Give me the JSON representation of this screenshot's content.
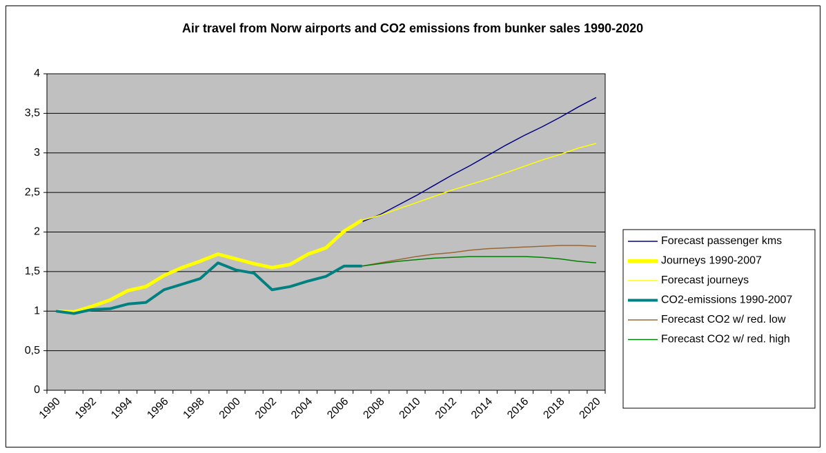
{
  "chart_data": {
    "type": "line",
    "title": "Air travel from Norw airports and CO2 emissions from bunker sales 1990-2020",
    "categories": [
      "1990",
      null,
      "1992",
      null,
      "1994",
      null,
      "1996",
      null,
      "1998",
      null,
      "2000",
      null,
      "2002",
      null,
      "2004",
      null,
      "2006",
      null,
      "2008",
      null,
      "2010",
      null,
      "2012",
      null,
      "2014",
      null,
      "2016",
      null,
      "2018",
      null,
      "2020"
    ],
    "series": [
      {
        "name": "Forecast passenger kms",
        "color": "#000080",
        "line_width": 1.5,
        "values": [
          null,
          null,
          null,
          null,
          null,
          null,
          null,
          null,
          null,
          null,
          null,
          null,
          null,
          null,
          null,
          null,
          null,
          2.13,
          2.22,
          2.34,
          2.46,
          2.59,
          2.72,
          2.84,
          2.97,
          3.1,
          3.22,
          3.33,
          3.45,
          3.58,
          3.7
        ]
      },
      {
        "name": "Journeys 1990-2007",
        "color": "#ffff00",
        "line_width": 5,
        "values": [
          1.0,
          0.99,
          1.06,
          1.14,
          1.26,
          1.31,
          1.45,
          1.55,
          1.63,
          1.72,
          1.66,
          1.6,
          1.55,
          1.59,
          1.72,
          1.8,
          2.01,
          2.15,
          null,
          null,
          null,
          null,
          null,
          null,
          null,
          null,
          null,
          null,
          null,
          null,
          null
        ]
      },
      {
        "name": "Forecast journeys",
        "color": "#ffff00",
        "line_width": 1.5,
        "values": [
          null,
          null,
          null,
          null,
          null,
          null,
          null,
          null,
          null,
          null,
          null,
          null,
          null,
          null,
          null,
          null,
          null,
          2.15,
          2.21,
          2.29,
          2.37,
          2.45,
          2.53,
          2.6,
          2.67,
          2.75,
          2.83,
          2.91,
          2.98,
          3.06,
          3.12
        ]
      },
      {
        "name": "CO2-emissions 1990-2007",
        "color": "#008080",
        "line_width": 4,
        "values": [
          1.0,
          0.97,
          1.02,
          1.03,
          1.09,
          1.11,
          1.27,
          1.34,
          1.41,
          1.61,
          1.52,
          1.48,
          1.27,
          1.31,
          1.38,
          1.44,
          1.57,
          1.57,
          null,
          null,
          null,
          null,
          null,
          null,
          null,
          null,
          null,
          null,
          null,
          null,
          null
        ]
      },
      {
        "name": "Forecast CO2 w/ red. low",
        "color": "#996633",
        "line_width": 1.5,
        "values": [
          null,
          null,
          null,
          null,
          null,
          null,
          null,
          null,
          null,
          null,
          null,
          null,
          null,
          null,
          null,
          null,
          null,
          1.57,
          1.61,
          1.65,
          1.69,
          1.72,
          1.74,
          1.77,
          1.79,
          1.8,
          1.81,
          1.82,
          1.83,
          1.83,
          1.82
        ]
      },
      {
        "name": "Forecast CO2 w/ red. high",
        "color": "#008000",
        "line_width": 1.5,
        "values": [
          null,
          null,
          null,
          null,
          null,
          null,
          null,
          null,
          null,
          null,
          null,
          null,
          null,
          null,
          null,
          null,
          null,
          1.57,
          1.6,
          1.63,
          1.65,
          1.67,
          1.68,
          1.69,
          1.69,
          1.69,
          1.69,
          1.68,
          1.66,
          1.63,
          1.61
        ]
      }
    ],
    "ylim": [
      0,
      4
    ],
    "yticks": [
      0,
      {
        "value": 0.5,
        "label": "0,5"
      },
      1,
      {
        "value": 1.5,
        "label": "1,5"
      },
      2,
      {
        "value": 2.5,
        "label": "2,5"
      },
      3,
      {
        "value": 3.5,
        "label": "3,5"
      },
      4
    ],
    "grid": true,
    "legend": "right",
    "plot_background": "#c0c0c0"
  }
}
